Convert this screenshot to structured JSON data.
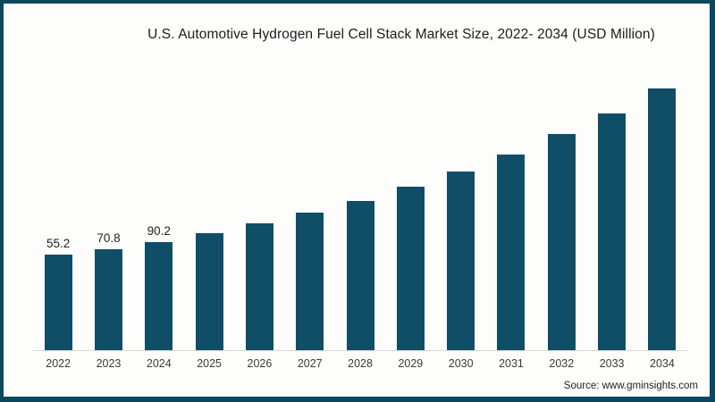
{
  "frame": {
    "border_color": "#0c485e",
    "background": "#fdfdfc"
  },
  "title": "U.S. Automotive Hydrogen Fuel Cell Stack Market Size, 2022- 2034 (USD Million)",
  "source": "Source: www.gminsights.com",
  "chart_data": {
    "type": "bar",
    "title": "U.S. Automotive Hydrogen Fuel Cell Stack Market Size, 2022- 2034 (USD Million)",
    "categories": [
      "2022",
      "2023",
      "2024",
      "2025",
      "2026",
      "2027",
      "2028",
      "2029",
      "2030",
      "2031",
      "2032",
      "2033",
      "2034"
    ],
    "values": [
      55.2,
      70.8,
      90.2,
      114.8,
      141.2,
      170.8,
      203.6,
      244.1,
      286.1,
      333.0,
      388.8,
      445.6,
      515.7
    ],
    "data_labels": [
      "55.2",
      "70.8",
      "90.2",
      "",
      "",
      "",
      "",
      "",
      "",
      "",
      "",
      "",
      ""
    ],
    "bar_color": "#104e68",
    "axis_line_color": "#dadada",
    "xlabel": "",
    "ylabel": "",
    "legend": false,
    "gridlines": false,
    "value_axis_hidden": true
  }
}
